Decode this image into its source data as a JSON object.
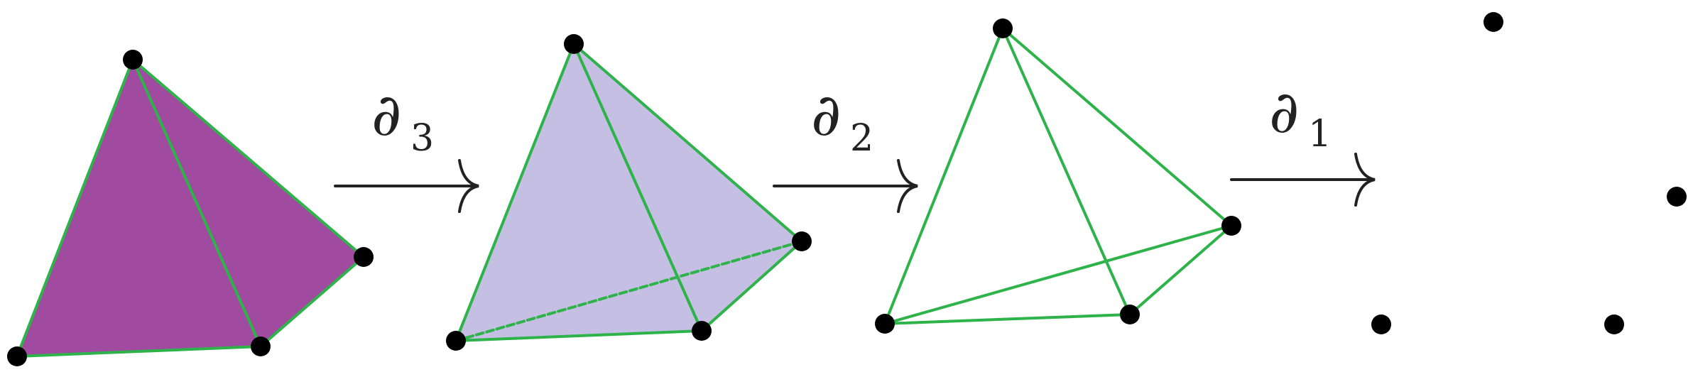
{
  "colors": {
    "tetra_fill": "#a04aa0",
    "face_fill": "#c5bfe3",
    "edge": "#2db34a",
    "vertex": "#000000",
    "arrow": "#222222"
  },
  "operators": [
    {
      "symbol": "∂",
      "subscript": "3"
    },
    {
      "symbol": "∂",
      "subscript": "2"
    },
    {
      "symbol": "∂",
      "subscript": "1"
    }
  ],
  "stages": [
    {
      "name": "solid-tetrahedron"
    },
    {
      "name": "boundary-faces"
    },
    {
      "name": "edges"
    },
    {
      "name": "vertices"
    }
  ]
}
